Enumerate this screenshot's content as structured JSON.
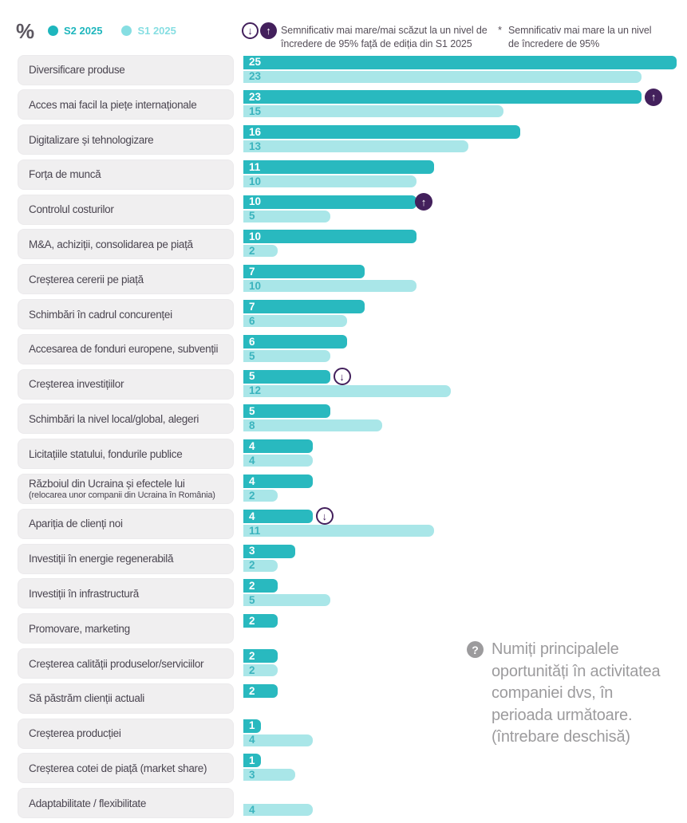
{
  "header": {
    "unit_label": "%",
    "legend": [
      {
        "id": "s2",
        "label": "S2 2025",
        "color": "#1eb6bd"
      },
      {
        "id": "s1",
        "label": "S1 2025",
        "color": "#86dee2"
      }
    ],
    "note_significance": "Semnificativ mai mare/mai scăzut la un nivel de\nîncredere de 95% față de ediția din S1 2025",
    "note_asterisk_symbol": "*",
    "note_asterisk": "Semnificativ mai mare la un nivel\nde încredere de 95%"
  },
  "question": {
    "icon": "question-mark",
    "text": "Numiți principalele\noportunități în activitatea\ncompaniei dvs, în\nperioada următoare.\n(întrebare deschisă)"
  },
  "colors": {
    "s2_bar": "#29b9bf",
    "s1_bar": "#a9e6e8",
    "s1_value_text": "#3bb4be",
    "marker_purple": "#43205c",
    "label_box_bg": "#f0eff0",
    "label_text": "#4a4550",
    "question_gray": "#9c9b9d"
  },
  "chart_data": {
    "type": "bar",
    "orientation": "horizontal",
    "unit": "%",
    "xlim": [
      0,
      25
    ],
    "grid": false,
    "legend_position": "top-left",
    "series_names": [
      "S2 2025",
      "S1 2025"
    ],
    "marker_legend": {
      "up": "significantly higher vs S1 2025 (95% confidence)",
      "down": "significantly lower vs S1 2025 (95% confidence)"
    },
    "rows": [
      {
        "label": "Diversificare produse",
        "s2": 25,
        "s1": 23,
        "marker": null
      },
      {
        "label": "Acces mai facil la piețe internaționale",
        "s2": 23,
        "s1": 15,
        "marker": "up"
      },
      {
        "label": "Digitalizare și tehnologizare",
        "s2": 16,
        "s1": 13,
        "marker": null
      },
      {
        "label": "Forța de muncă",
        "s2": 11,
        "s1": 10,
        "marker": null
      },
      {
        "label": "Controlul costurilor",
        "s2": 10,
        "s1": 5,
        "marker": "up",
        "marker_overlap": true
      },
      {
        "label": "M&A, achiziții, consolidarea pe piață",
        "s2": 10,
        "s1": 2,
        "marker": null
      },
      {
        "label": "Creșterea cererii pe piață",
        "s2": 7,
        "s1": 10,
        "marker": null
      },
      {
        "label": "Schimbări în cadrul concurenței",
        "s2": 7,
        "s1": 6,
        "marker": null
      },
      {
        "label": "Accesarea de fonduri europene, subvenții",
        "s2": 6,
        "s1": 5,
        "marker": null
      },
      {
        "label": "Creșterea investițiilor",
        "s2": 5,
        "s1": 12,
        "marker": "down"
      },
      {
        "label": "Schimbări la nivel local/global, alegeri",
        "s2": 5,
        "s1": 8,
        "marker": null
      },
      {
        "label": "Licitațiile statului, fondurile publice",
        "s2": 4,
        "s1": 4,
        "marker": null
      },
      {
        "label": "Războiul din Ucraina și efectele lui",
        "sublabel": "(relocarea unor companii din Ucraina în România)",
        "s2": 4,
        "s1": 2,
        "marker": null
      },
      {
        "label": "Apariția de clienți noi",
        "s2": 4,
        "s1": 11,
        "marker": "down"
      },
      {
        "label": "Investiții în energie regenerabilă",
        "s2": 3,
        "s1": 2,
        "marker": null
      },
      {
        "label": "Investiții în infrastructură",
        "s2": 2,
        "s1": 5,
        "marker": null
      },
      {
        "label": "Promovare, marketing",
        "s2": 2,
        "s1": null,
        "marker": null
      },
      {
        "label": "Creșterea calității produselor/serviciilor",
        "s2": 2,
        "s1": 2,
        "marker": null
      },
      {
        "label": "Să păstrăm clienții actuali",
        "s2": 2,
        "s1": null,
        "marker": null
      },
      {
        "label": "Creșterea producției",
        "s2": 1,
        "s1": 4,
        "marker": null
      },
      {
        "label": "Creșterea cotei de piață (market share)",
        "s2": 1,
        "s1": 3,
        "marker": null
      },
      {
        "label": "Adaptabilitate / flexibilitate",
        "s2": null,
        "s1": 4,
        "marker": null
      }
    ]
  }
}
